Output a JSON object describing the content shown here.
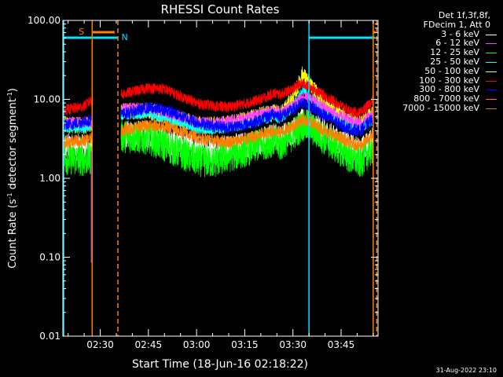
{
  "chart_data": {
    "type": "line",
    "title": "RHESSI Count Rates",
    "xlabel": "Start Time (18-Jun-16 02:18:22)",
    "ylabel_main": "Count Rate (s",
    "ylabel_sup": "-1",
    "ylabel_rest": " detector segment",
    "ylabel_sup2": "-1",
    "ylabel_end": ")",
    "yscale": "log",
    "ylim": [
      0.01,
      100
    ],
    "xlim_minutes": [
      18.37,
      116.5
    ],
    "y_ticks": [
      {
        "value": 0.01,
        "label": "0.01"
      },
      {
        "value": 0.1,
        "label": "0.10"
      },
      {
        "value": 1,
        "label": "1.00"
      },
      {
        "value": 10,
        "label": "10.00"
      },
      {
        "value": 100,
        "label": "100.00"
      }
    ],
    "x_ticks": [
      {
        "minute": 30,
        "label": "02:30"
      },
      {
        "minute": 45,
        "label": "02:45"
      },
      {
        "minute": 60,
        "label": "03:00"
      },
      {
        "minute": 75,
        "label": "03:15"
      },
      {
        "minute": 90,
        "label": "03:30"
      },
      {
        "minute": 105,
        "label": "03:45"
      }
    ],
    "data_gap_minutes": [
      27.5,
      36.5
    ],
    "saa_flag": {
      "label": "S",
      "color": "#ff8000"
    },
    "night_flag": {
      "label": "N",
      "color": "#00e0ff"
    },
    "series": [
      {
        "name": "3 - 6 keV",
        "color": "#ffffff",
        "points": [
          [
            18.4,
            2.6
          ],
          [
            25,
            2.4
          ],
          [
            27.5,
            2.2
          ],
          [
            36.5,
            3.6
          ],
          [
            45,
            3.6
          ],
          [
            55,
            2.7
          ],
          [
            60,
            2.4
          ],
          [
            65,
            2.3
          ],
          [
            70,
            2.4
          ],
          [
            75,
            2.6
          ],
          [
            80,
            3.0
          ],
          [
            84,
            3.4
          ],
          [
            86,
            3.2
          ],
          [
            90,
            4.0
          ],
          [
            93,
            5.2
          ],
          [
            96,
            4.8
          ],
          [
            100,
            3.8
          ],
          [
            104,
            3.0
          ],
          [
            108,
            2.5
          ],
          [
            111,
            2.2
          ],
          [
            113,
            2.6
          ],
          [
            115,
            3.0
          ]
        ]
      },
      {
        "name": "6 - 12 keV",
        "color": "#ff40ff",
        "points": [
          [
            18.4,
            5.0
          ],
          [
            25,
            5.2
          ],
          [
            27.5,
            5.0
          ],
          [
            36.5,
            7.8
          ],
          [
            45,
            7.8
          ],
          [
            55,
            6.0
          ],
          [
            60,
            5.2
          ],
          [
            65,
            5.0
          ],
          [
            70,
            5.4
          ],
          [
            75,
            5.8
          ],
          [
            80,
            6.6
          ],
          [
            84,
            7.2
          ],
          [
            86,
            6.8
          ],
          [
            90,
            8.2
          ],
          [
            93,
            11.0
          ],
          [
            96,
            10.0
          ],
          [
            100,
            7.8
          ],
          [
            104,
            6.4
          ],
          [
            108,
            5.4
          ],
          [
            111,
            5.0
          ],
          [
            113,
            5.8
          ],
          [
            115,
            6.6
          ]
        ]
      },
      {
        "name": "12 - 25 keV",
        "color": "#00ff00",
        "points": [
          [
            18.4,
            1.8
          ],
          [
            25,
            1.7
          ],
          [
            27.5,
            1.8
          ],
          [
            36.5,
            3.4
          ],
          [
            45,
            3.2
          ],
          [
            55,
            2.1
          ],
          [
            60,
            1.7
          ],
          [
            65,
            1.6
          ],
          [
            70,
            1.9
          ],
          [
            75,
            2.2
          ],
          [
            80,
            2.7
          ],
          [
            84,
            3.0
          ],
          [
            86,
            2.6
          ],
          [
            90,
            3.6
          ],
          [
            93,
            4.7
          ],
          [
            96,
            4.2
          ],
          [
            100,
            3.1
          ],
          [
            104,
            2.4
          ],
          [
            108,
            1.8
          ],
          [
            111,
            1.6
          ],
          [
            113,
            2.0
          ],
          [
            115,
            2.4
          ]
        ]
      },
      {
        "name": "25 - 50 keV",
        "color": "#00ffff",
        "points": [
          [
            18.4,
            4.5
          ],
          [
            25,
            4.3
          ],
          [
            27.5,
            4.6
          ],
          [
            36.5,
            6.5
          ],
          [
            45,
            6.6
          ],
          [
            55,
            5.0
          ],
          [
            60,
            4.3
          ],
          [
            65,
            4.2
          ],
          [
            70,
            4.4
          ],
          [
            75,
            4.8
          ],
          [
            80,
            5.5
          ],
          [
            84,
            6.0
          ],
          [
            86,
            5.6
          ],
          [
            90,
            8.0
          ],
          [
            93,
            14.0
          ],
          [
            96,
            10.0
          ],
          [
            100,
            7.0
          ],
          [
            104,
            5.6
          ],
          [
            108,
            4.6
          ],
          [
            111,
            4.2
          ],
          [
            113,
            4.9
          ],
          [
            115,
            5.5
          ]
        ]
      },
      {
        "name": "50 - 100 keV",
        "color": "#ffff00",
        "points": [
          [
            18.4,
            4.8
          ],
          [
            25,
            4.6
          ],
          [
            27.5,
            4.9
          ],
          [
            36.5,
            7.0
          ],
          [
            45,
            7.2
          ],
          [
            55,
            5.6
          ],
          [
            60,
            4.8
          ],
          [
            65,
            4.7
          ],
          [
            70,
            5.0
          ],
          [
            75,
            5.5
          ],
          [
            80,
            6.3
          ],
          [
            84,
            7.0
          ],
          [
            86,
            6.5
          ],
          [
            90,
            10.0
          ],
          [
            93,
            21.0
          ],
          [
            96,
            14.0
          ],
          [
            100,
            9.0
          ],
          [
            104,
            6.8
          ],
          [
            108,
            5.5
          ],
          [
            111,
            5.0
          ],
          [
            113,
            5.8
          ],
          [
            115,
            6.6
          ]
        ]
      },
      {
        "name": "100 - 300 keV",
        "color": "#ff0000",
        "points": [
          [
            18.4,
            7.2
          ],
          [
            25,
            8.2
          ],
          [
            27.5,
            10.0
          ],
          [
            36.5,
            11.5
          ],
          [
            45,
            14.0
          ],
          [
            50,
            13.5
          ],
          [
            55,
            11.0
          ],
          [
            60,
            9.0
          ],
          [
            65,
            8.2
          ],
          [
            70,
            8.0
          ],
          [
            75,
            8.8
          ],
          [
            80,
            10.0
          ],
          [
            84,
            12.0
          ],
          [
            86,
            11.5
          ],
          [
            90,
            13.5
          ],
          [
            93,
            16.0
          ],
          [
            96,
            14.0
          ],
          [
            100,
            11.0
          ],
          [
            104,
            8.8
          ],
          [
            108,
            7.0
          ],
          [
            111,
            6.6
          ],
          [
            113,
            8.0
          ],
          [
            115,
            10.0
          ]
        ]
      },
      {
        "name": "300 - 800 keV",
        "color": "#0000ff",
        "points": [
          [
            18.4,
            4.6
          ],
          [
            25,
            5.2
          ],
          [
            27.5,
            5.6
          ],
          [
            36.5,
            6.4
          ],
          [
            45,
            7.8
          ],
          [
            50,
            7.4
          ],
          [
            55,
            6.2
          ],
          [
            60,
            5.1
          ],
          [
            65,
            4.6
          ],
          [
            70,
            4.4
          ],
          [
            75,
            4.8
          ],
          [
            80,
            5.5
          ],
          [
            84,
            6.6
          ],
          [
            86,
            6.2
          ],
          [
            90,
            7.4
          ],
          [
            93,
            9.0
          ],
          [
            96,
            8.0
          ],
          [
            100,
            6.2
          ],
          [
            104,
            5.0
          ],
          [
            108,
            4.2
          ],
          [
            111,
            4.0
          ],
          [
            113,
            4.8
          ],
          [
            115,
            5.8
          ]
        ]
      },
      {
        "name": "800 - 7000 keV",
        "color": "#ff8000",
        "points": [
          [
            18.4,
            2.8
          ],
          [
            25,
            3.0
          ],
          [
            27.5,
            3.2
          ],
          [
            36.5,
            4.0
          ],
          [
            45,
            4.8
          ],
          [
            50,
            4.6
          ],
          [
            55,
            3.9
          ],
          [
            60,
            3.3
          ],
          [
            65,
            3.0
          ],
          [
            70,
            2.9
          ],
          [
            75,
            3.1
          ],
          [
            80,
            3.5
          ],
          [
            84,
            4.0
          ],
          [
            86,
            3.8
          ],
          [
            90,
            4.6
          ],
          [
            93,
            5.6
          ],
          [
            96,
            5.0
          ],
          [
            100,
            4.0
          ],
          [
            104,
            3.3
          ],
          [
            108,
            2.8
          ],
          [
            111,
            2.6
          ],
          [
            113,
            3.0
          ],
          [
            115,
            3.6
          ]
        ]
      },
      {
        "name": "7000 - 15000 keV",
        "color": "#c08000",
        "points": []
      }
    ]
  },
  "legend_header": [
    "Det 1f,3f,8f,",
    "FDecim 1, Att 0"
  ],
  "footer": "31-Aug-2022 23:10",
  "colors": {
    "background": "#000000",
    "axis": "#ffffff"
  }
}
